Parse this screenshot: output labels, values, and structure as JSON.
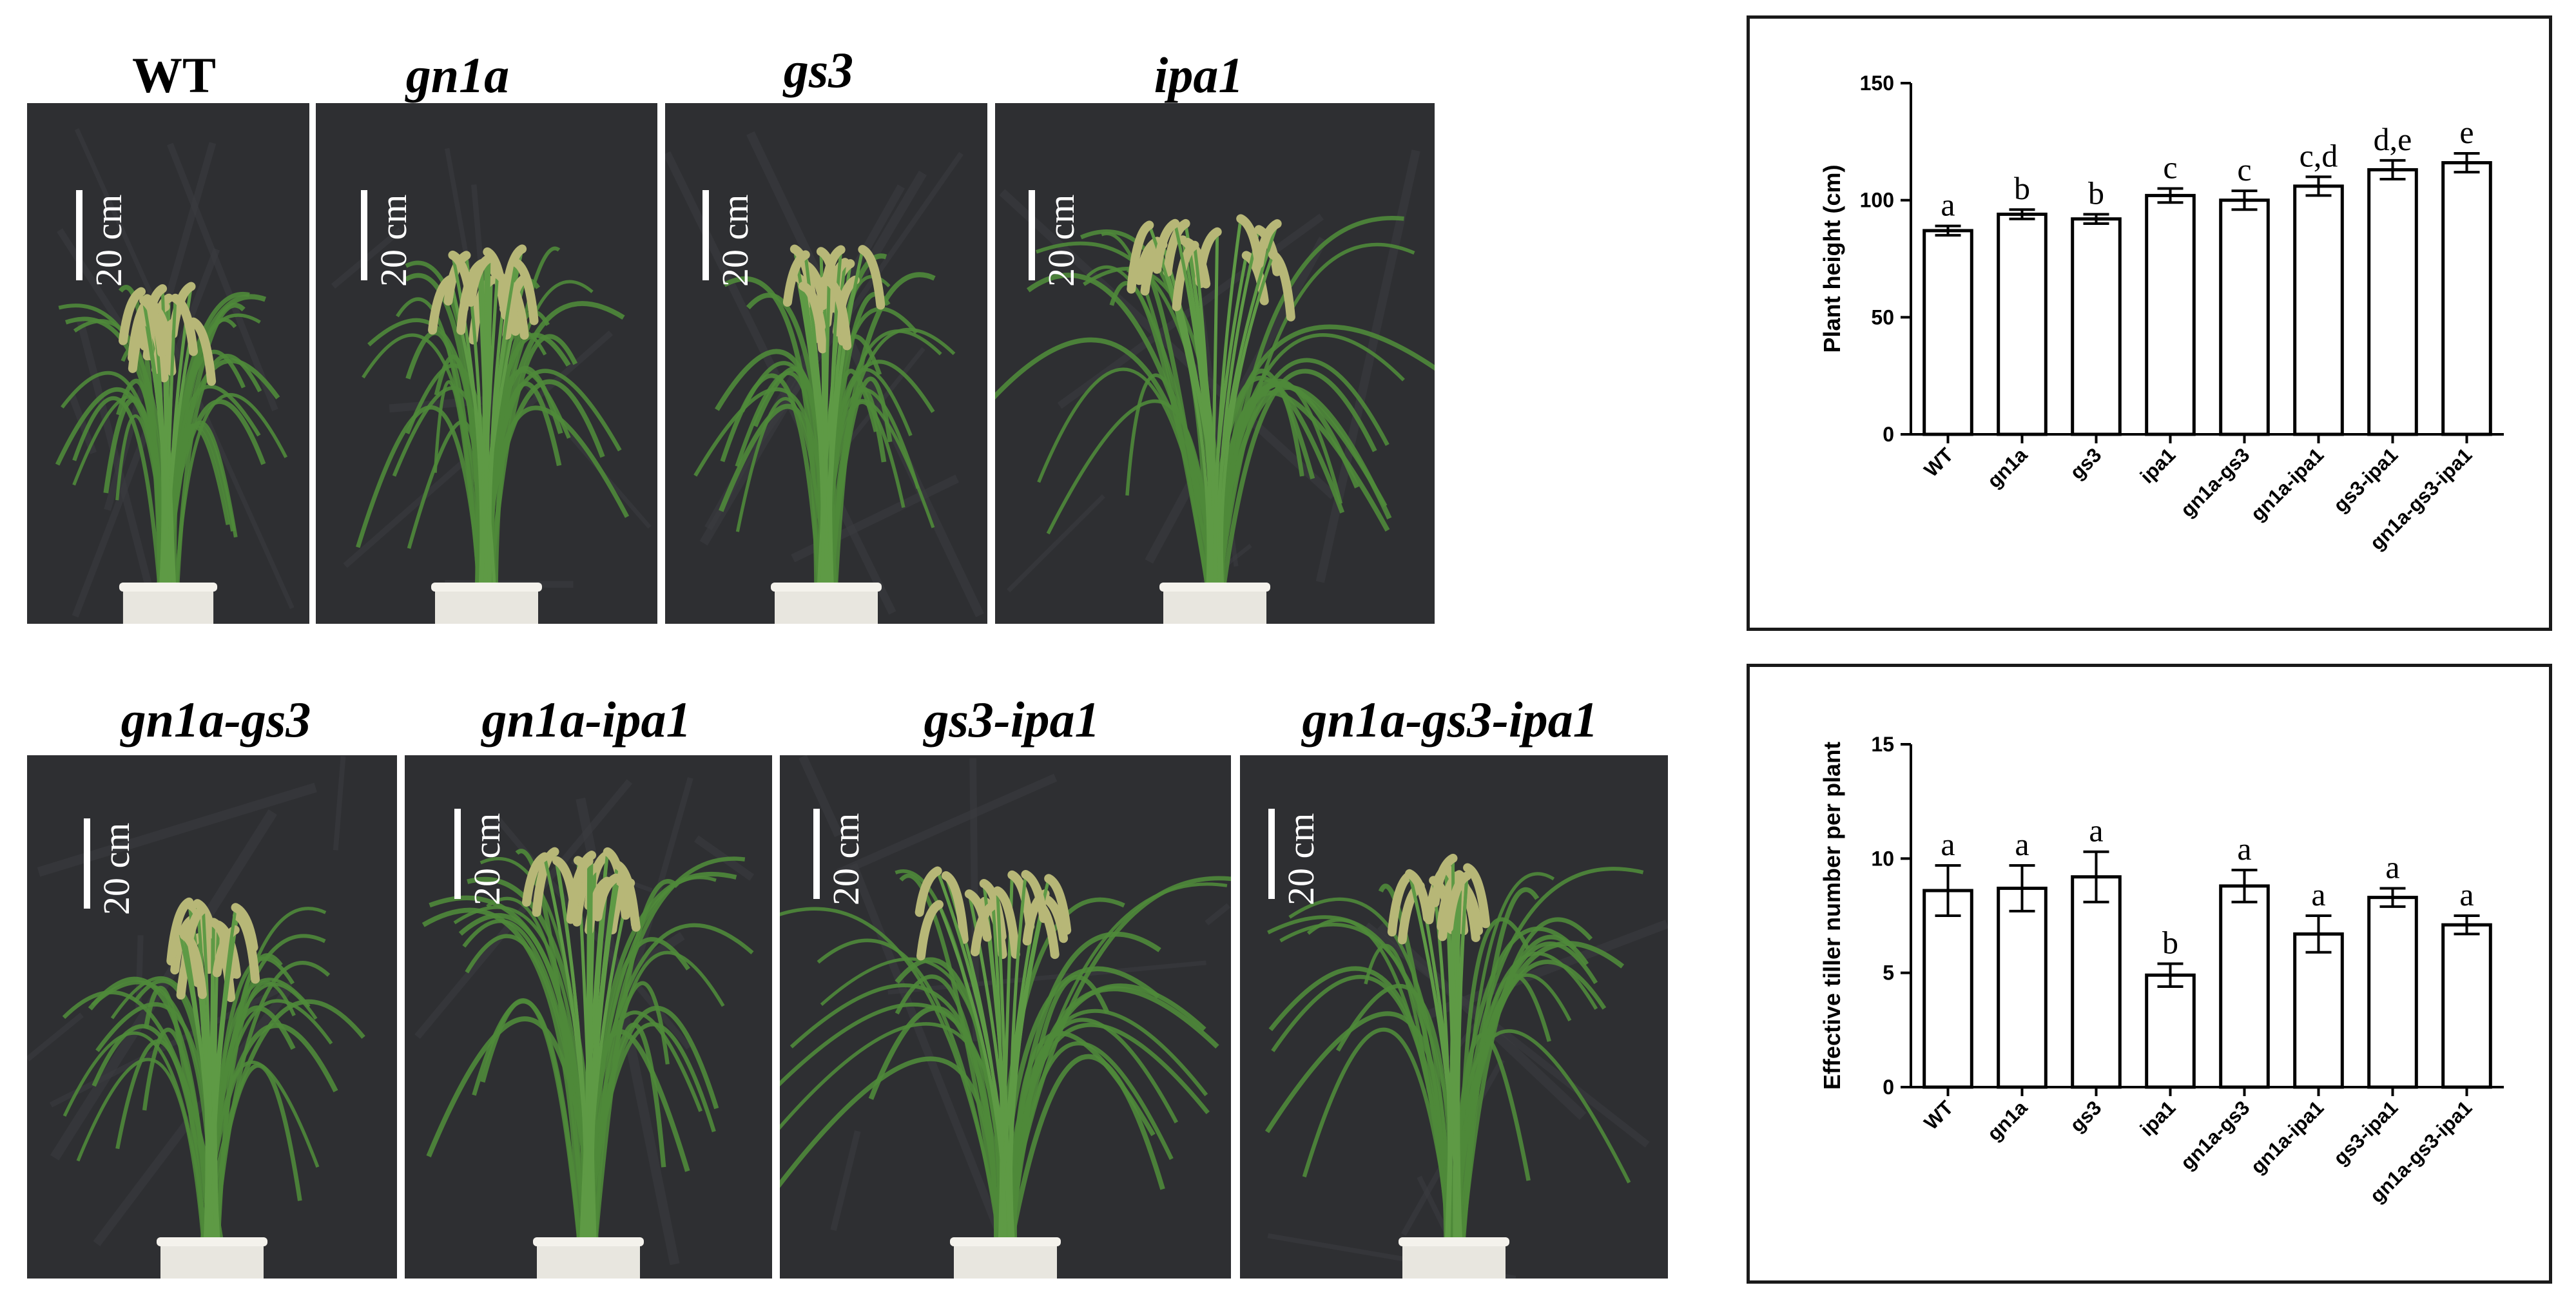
{
  "photos": {
    "top_row": [
      {
        "label": "WT"
      },
      {
        "label": "gn1a"
      },
      {
        "label": "gs3"
      },
      {
        "label": "ipa1"
      }
    ],
    "bottom_row": [
      {
        "label": "gn1a-gs3"
      },
      {
        "label": "gn1a-ipa1"
      },
      {
        "label": "gs3-ipa1"
      },
      {
        "label": "gn1a-gs3-ipa1"
      }
    ],
    "scale_bar_text": "20 cm"
  },
  "colors": {
    "photo_background": "#2e2f32",
    "plant_green": "#4f8a3a",
    "panicle": "#b7b777",
    "pot": "#e8e6df",
    "bar_fill": "#ffffff",
    "axis": "#000000"
  },
  "chart_data": [
    {
      "type": "bar",
      "categories": [
        "WT",
        "gn1a",
        "gs3",
        "ipa1",
        "gn1a-gs3",
        "gn1a-ipa1",
        "gs3-ipa1",
        "gn1a-gs3-ipa1"
      ],
      "values": [
        87,
        94,
        92,
        102,
        100,
        106,
        113,
        116
      ],
      "errors": [
        2,
        2,
        2,
        3,
        4,
        4,
        4,
        4
      ],
      "significance": [
        "a",
        "b",
        "b",
        "c",
        "c",
        "c,d",
        "d,e",
        "e"
      ],
      "ylabel": "Plant height (cm)",
      "xlabel": "",
      "title": "",
      "ylim": [
        0,
        150
      ],
      "yticks": [
        0,
        50,
        100,
        150
      ],
      "grid": false
    },
    {
      "type": "bar",
      "categories": [
        "WT",
        "gn1a",
        "gs3",
        "ipa1",
        "gn1a-gs3",
        "gn1a-ipa1",
        "gs3-ipa1",
        "gn1a-gs3-ipa1"
      ],
      "values": [
        8.6,
        8.7,
        9.2,
        4.9,
        8.8,
        6.7,
        8.3,
        7.1
      ],
      "errors": [
        1.1,
        1.0,
        1.1,
        0.5,
        0.7,
        0.8,
        0.4,
        0.4
      ],
      "significance": [
        "a",
        "a",
        "a",
        "b",
        "a",
        "a",
        "a",
        "a"
      ],
      "ylabel": "Effective tiller number per plant",
      "xlabel": "",
      "title": "",
      "ylim": [
        0,
        15
      ],
      "yticks": [
        0,
        5,
        10,
        15
      ],
      "grid": false
    }
  ]
}
